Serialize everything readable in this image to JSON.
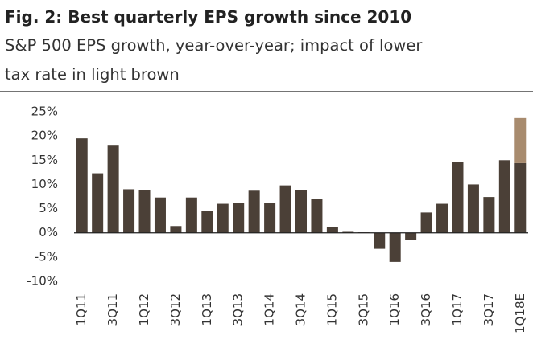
{
  "chart_data": {
    "type": "bar",
    "stacked": true,
    "title": "Fig. 2: Best quarterly EPS growth since 2010",
    "subtitle": [
      "S&P 500 EPS growth, year-over-year; impact of lower",
      "tax rate in light brown"
    ],
    "categories": [
      "1Q11",
      null,
      "3Q11",
      null,
      "1Q12",
      null,
      "3Q12",
      null,
      "1Q13",
      null,
      "3Q13",
      null,
      "1Q14",
      null,
      "3Q14",
      null,
      "1Q15",
      null,
      "3Q15",
      null,
      "1Q16",
      null,
      "3Q16",
      null,
      "1Q17",
      null,
      "3Q17",
      null,
      "1Q18E"
    ],
    "series": [
      {
        "color": "#4b4037",
        "values": [
          19.5,
          12.3,
          18,
          9,
          8.8,
          7.3,
          1.4,
          7.3,
          4.5,
          6,
          6.2,
          8.7,
          6.2,
          9.8,
          8.8,
          7,
          1.2,
          0.2,
          0.1,
          -3.3,
          -6,
          -1.5,
          4.2,
          6,
          14.7,
          10,
          7.4,
          15,
          14.4
        ]
      },
      {
        "color": "#a88b6e",
        "values": [
          null,
          null,
          null,
          null,
          null,
          null,
          null,
          null,
          null,
          null,
          null,
          null,
          null,
          null,
          null,
          null,
          null,
          null,
          null,
          null,
          null,
          null,
          null,
          null,
          null,
          null,
          null,
          null,
          9.3
        ]
      }
    ],
    "ylim": [
      -10,
      25
    ],
    "yticks": [
      {
        "value": -10,
        "label": "-10%"
      },
      {
        "value": -5,
        "label": "-5%"
      },
      {
        "value": 0,
        "label": "0%"
      },
      {
        "value": 5,
        "label": "5%"
      },
      {
        "value": 10,
        "label": "10%"
      },
      {
        "value": 15,
        "label": "15%"
      },
      {
        "value": 20,
        "label": "20%"
      },
      {
        "value": 25,
        "label": "25%"
      }
    ]
  }
}
